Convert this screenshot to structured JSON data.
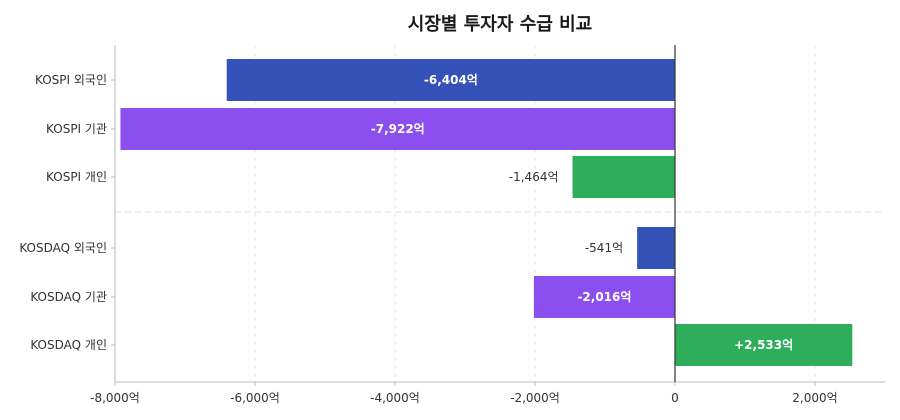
{
  "chart_data": {
    "type": "bar",
    "orientation": "horizontal",
    "title": "시장별 투자자 수급 비교",
    "xlabel": "",
    "ylabel": "",
    "xlim": [
      -8000,
      3000
    ],
    "x_ticks": [
      -8000,
      -6000,
      -4000,
      -2000,
      0,
      2000
    ],
    "x_tick_labels": [
      "-8,000억",
      "-6,000억",
      "-4,000억",
      "-2,000억",
      "0",
      "2,000억"
    ],
    "grid": true,
    "categories": [
      "KOSPI 외국인",
      "KOSPI 기관",
      "KOSPI 개인",
      "KOSDAQ 외국인",
      "KOSDAQ 기관",
      "KOSDAQ 개인"
    ],
    "groups": [
      "KOSPI",
      "KOSDAQ"
    ],
    "values": [
      -6404,
      -7922,
      -1464,
      -541,
      -2016,
      2533
    ],
    "value_labels": [
      "-6,404억",
      "-7,922억",
      "-1,464억",
      "-541억",
      "-2,016억",
      "+2,533억"
    ],
    "colors": [
      "#3552b8",
      "#8b4ff0",
      "#2eae5a",
      "#3552b8",
      "#8b4ff0",
      "#2eae5a"
    ],
    "label_inside": [
      true,
      true,
      false,
      false,
      true,
      true
    ]
  }
}
